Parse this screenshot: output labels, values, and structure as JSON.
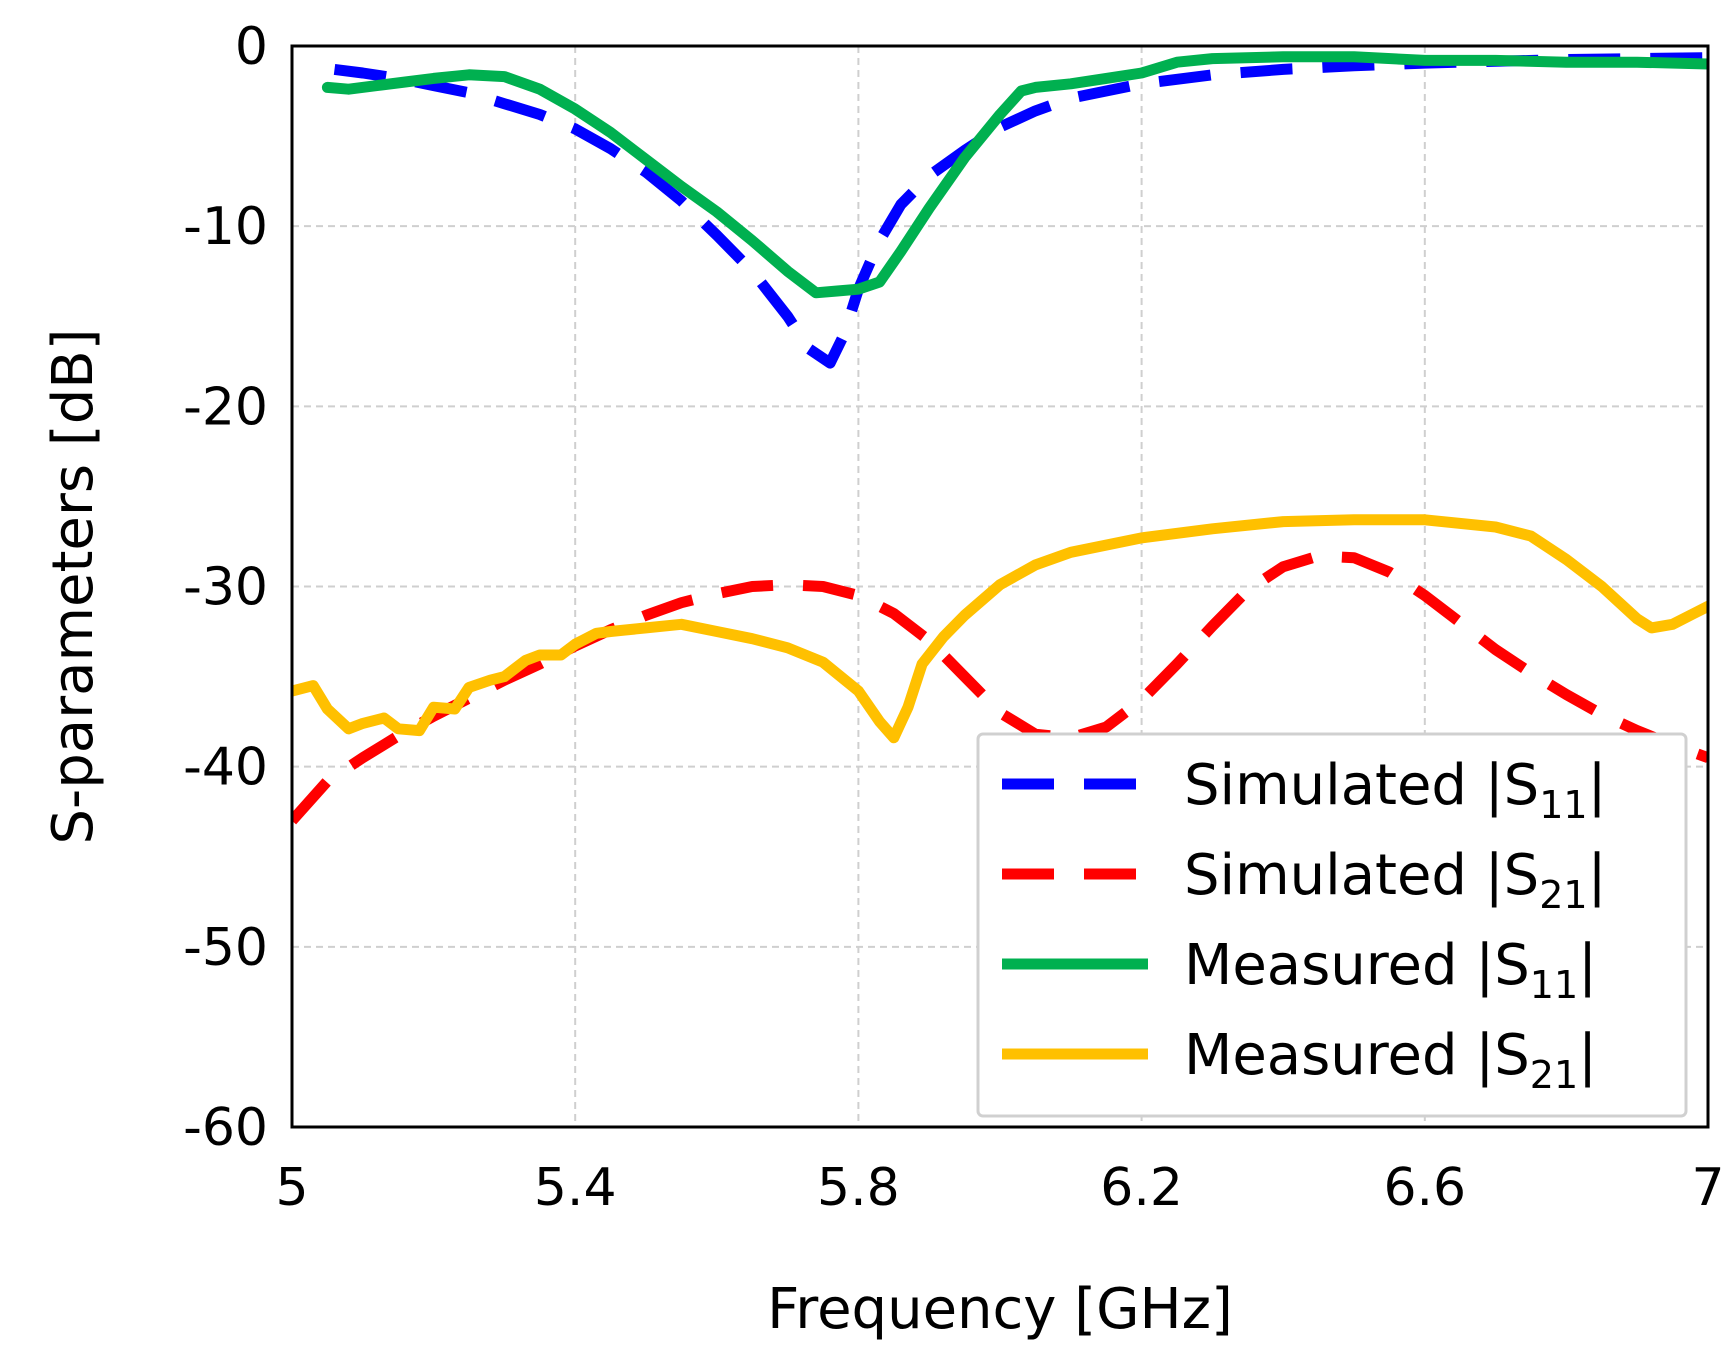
{
  "chart_data": {
    "type": "line",
    "title": "",
    "xlabel": "Frequency [GHz]",
    "ylabel": "S-parameters [dB]",
    "xlim": [
      5,
      7
    ],
    "ylim": [
      -60,
      0
    ],
    "xticks": [
      5,
      5.4,
      5.8,
      6.2,
      6.6,
      7
    ],
    "xtick_labels": [
      "5",
      "5.4",
      "5.8",
      "6.2",
      "6.6",
      "7"
    ],
    "yticks": [
      0,
      -10,
      -20,
      -30,
      -40,
      -50,
      -60
    ],
    "ytick_labels": [
      "0",
      "-10",
      "-20",
      "-30",
      "-40",
      "-50",
      "-60"
    ],
    "grid": true,
    "legend_position": "bottom-right",
    "series": [
      {
        "name": "Simulated |S11|",
        "label_main": "Simulated |S",
        "label_sub": "11",
        "label_end": "|",
        "color": "#0000ff",
        "style": "dashed",
        "x": [
          5.06,
          5.1,
          5.15,
          5.2,
          5.25,
          5.3,
          5.35,
          5.4,
          5.45,
          5.5,
          5.55,
          5.6,
          5.65,
          5.7,
          5.73,
          5.76,
          5.78,
          5.8,
          5.83,
          5.86,
          5.9,
          5.95,
          6.0,
          6.05,
          6.1,
          6.2,
          6.3,
          6.4,
          6.5,
          6.6,
          6.7,
          6.8,
          6.9,
          7.0
        ],
        "y": [
          -1.3,
          -1.5,
          -1.8,
          -2.2,
          -2.6,
          -3.2,
          -3.8,
          -4.6,
          -5.7,
          -7.0,
          -8.6,
          -10.5,
          -12.5,
          -15.0,
          -16.8,
          -17.6,
          -16.0,
          -13.5,
          -10.8,
          -8.8,
          -7.2,
          -5.8,
          -4.5,
          -3.6,
          -2.9,
          -2.1,
          -1.6,
          -1.3,
          -1.1,
          -0.95,
          -0.85,
          -0.75,
          -0.7,
          -0.65
        ]
      },
      {
        "name": "Simulated |S21|",
        "label_main": "Simulated |S",
        "label_sub": "21",
        "label_end": "|",
        "color": "#ff0000",
        "style": "dashed",
        "x": [
          5.0,
          5.05,
          5.1,
          5.15,
          5.2,
          5.25,
          5.3,
          5.35,
          5.4,
          5.45,
          5.5,
          5.55,
          5.6,
          5.65,
          5.7,
          5.75,
          5.8,
          5.85,
          5.9,
          5.95,
          6.0,
          6.05,
          6.1,
          6.15,
          6.2,
          6.25,
          6.3,
          6.35,
          6.4,
          6.45,
          6.5,
          6.55,
          6.6,
          6.65,
          6.7,
          6.75,
          6.8,
          6.85,
          6.9,
          6.95,
          7.0
        ],
        "y": [
          -43.0,
          -40.8,
          -39.5,
          -38.3,
          -37.2,
          -36.2,
          -35.2,
          -34.3,
          -33.3,
          -32.4,
          -31.6,
          -30.9,
          -30.4,
          -30.0,
          -29.9,
          -30.0,
          -30.5,
          -31.5,
          -33.0,
          -35.0,
          -37.0,
          -38.2,
          -38.4,
          -37.8,
          -36.3,
          -34.3,
          -32.2,
          -30.2,
          -28.9,
          -28.3,
          -28.4,
          -29.2,
          -30.5,
          -32.0,
          -33.5,
          -34.8,
          -36.0,
          -37.1,
          -38.0,
          -38.8,
          -39.5
        ]
      },
      {
        "name": "Measured |S11|",
        "label_main": "Measured |S",
        "label_sub": "11",
        "label_end": "|",
        "color": "#00b050",
        "style": "solid",
        "x": [
          5.05,
          5.08,
          5.12,
          5.16,
          5.2,
          5.25,
          5.3,
          5.35,
          5.4,
          5.45,
          5.5,
          5.55,
          5.6,
          5.65,
          5.7,
          5.74,
          5.77,
          5.8,
          5.83,
          5.86,
          5.9,
          5.95,
          6.0,
          6.03,
          6.05,
          6.1,
          6.15,
          6.2,
          6.25,
          6.3,
          6.4,
          6.5,
          6.6,
          6.7,
          6.8,
          6.9,
          7.0
        ],
        "y": [
          -2.3,
          -2.4,
          -2.2,
          -2.0,
          -1.8,
          -1.6,
          -1.7,
          -2.4,
          -3.5,
          -4.8,
          -6.3,
          -7.8,
          -9.2,
          -10.8,
          -12.5,
          -13.7,
          -13.6,
          -13.5,
          -13.1,
          -11.4,
          -9.0,
          -6.2,
          -3.8,
          -2.5,
          -2.3,
          -2.1,
          -1.8,
          -1.5,
          -0.9,
          -0.7,
          -0.6,
          -0.6,
          -0.8,
          -0.8,
          -0.9,
          -0.9,
          -1.0
        ]
      },
      {
        "name": "Measured |S21|",
        "label_main": "Measured |S",
        "label_sub": "21",
        "label_end": "|",
        "color": "#ffc000",
        "style": "solid",
        "x": [
          5.0,
          5.03,
          5.05,
          5.08,
          5.1,
          5.13,
          5.15,
          5.18,
          5.2,
          5.23,
          5.25,
          5.28,
          5.3,
          5.33,
          5.35,
          5.38,
          5.4,
          5.43,
          5.45,
          5.5,
          5.55,
          5.6,
          5.65,
          5.7,
          5.75,
          5.8,
          5.83,
          5.85,
          5.87,
          5.89,
          5.92,
          5.95,
          6.0,
          6.05,
          6.1,
          6.2,
          6.3,
          6.4,
          6.5,
          6.6,
          6.7,
          6.75,
          6.8,
          6.85,
          6.9,
          6.92,
          6.95,
          6.98,
          7.0
        ],
        "y": [
          -35.8,
          -35.5,
          -36.8,
          -37.9,
          -37.6,
          -37.3,
          -37.9,
          -38.0,
          -36.7,
          -36.8,
          -35.6,
          -35.2,
          -35.0,
          -34.1,
          -33.8,
          -33.8,
          -33.2,
          -32.6,
          -32.5,
          -32.3,
          -32.1,
          -32.5,
          -32.9,
          -33.4,
          -34.2,
          -35.8,
          -37.5,
          -38.4,
          -36.7,
          -34.3,
          -32.8,
          -31.6,
          -29.9,
          -28.8,
          -28.1,
          -27.3,
          -26.8,
          -26.4,
          -26.3,
          -26.3,
          -26.7,
          -27.2,
          -28.5,
          -30.0,
          -31.8,
          -32.3,
          -32.1,
          -31.5,
          -31.1
        ]
      }
    ]
  }
}
